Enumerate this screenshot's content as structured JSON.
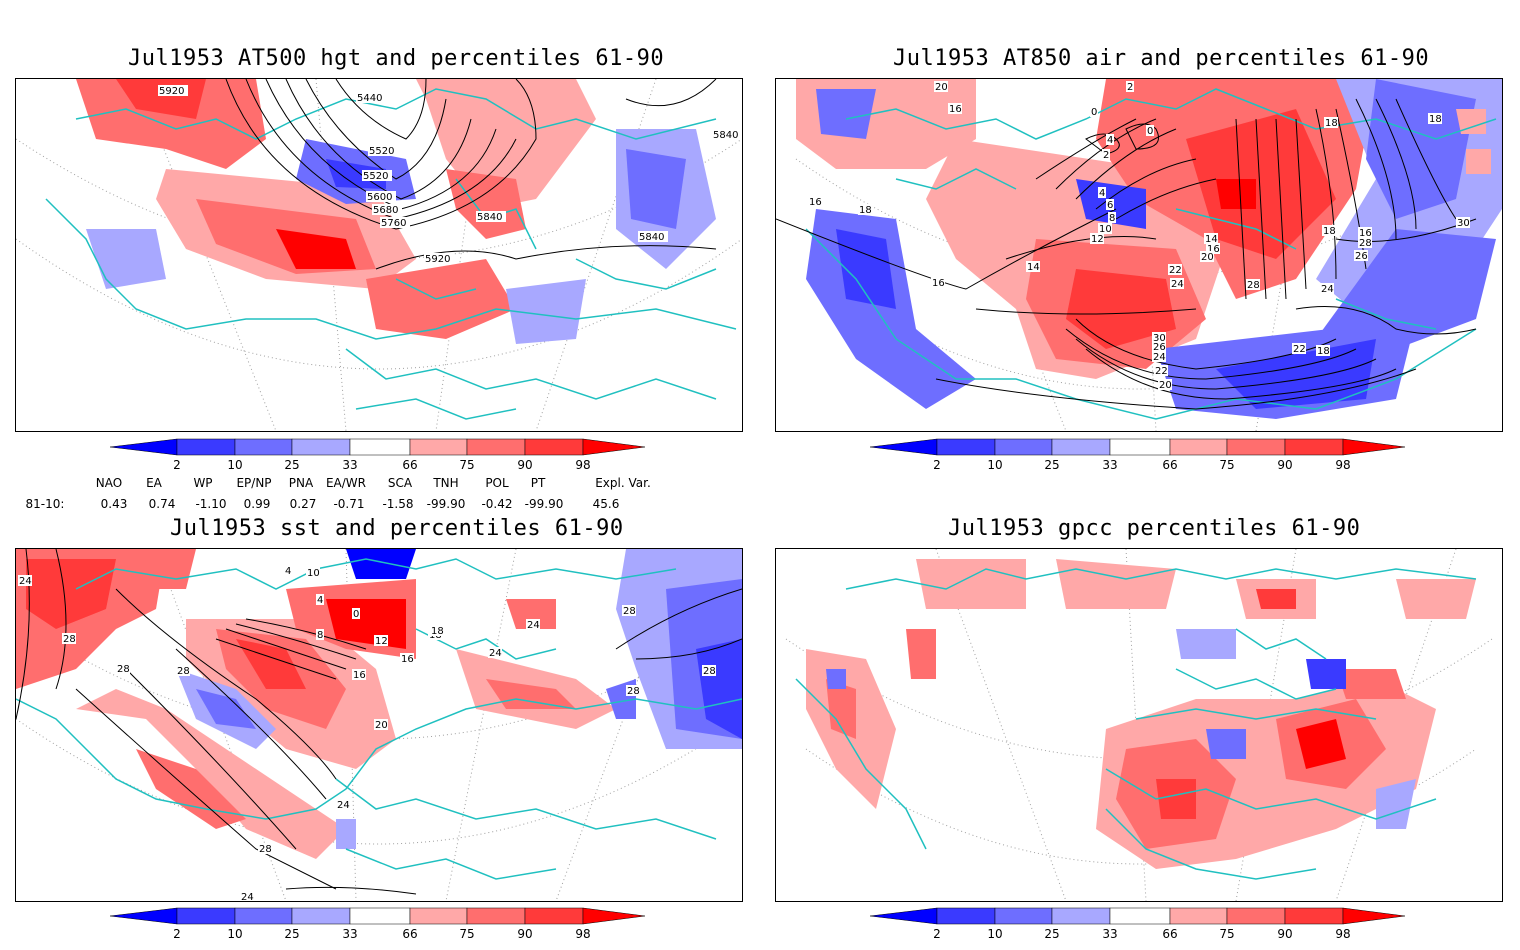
{
  "panels": [
    {
      "id": "hgt500",
      "title": "Jul1953 AT500 hgt and percentiles 61-90",
      "contour_labels": [
        "5920",
        "5440",
        "5520",
        "5520",
        "5600",
        "5680",
        "5760",
        "5840",
        "5840",
        "5920",
        "5840"
      ]
    },
    {
      "id": "air850",
      "title": "Jul1953 AT850 air and percentiles 61-90",
      "contour_labels": [
        "20",
        "16",
        "16",
        "18",
        "0",
        "2",
        "4",
        "0",
        "2",
        "4",
        "6",
        "8",
        "10",
        "12",
        "14",
        "16",
        "14",
        "16",
        "20",
        "22",
        "24",
        "28",
        "30",
        "26",
        "24",
        "22",
        "20",
        "18",
        "16",
        "28",
        "26",
        "24",
        "22",
        "18",
        "18",
        "18",
        "30",
        "16",
        "16"
      ]
    },
    {
      "id": "sst",
      "title": "Jul1953 sst and percentiles 61-90",
      "contour_labels": [
        "24",
        "28",
        "28",
        "28",
        "4",
        "10",
        "4",
        "0",
        "8",
        "12",
        "16",
        "18",
        "16",
        "20",
        "24",
        "28",
        "24",
        "24",
        "28",
        "28",
        "18",
        "24",
        "28"
      ]
    },
    {
      "id": "gpcc",
      "title": "Jul1953 gpcc percentiles 61-90",
      "contour_labels": []
    }
  ],
  "colorbar": {
    "labels": [
      "2",
      "10",
      "25",
      "33",
      "66",
      "75",
      "90",
      "98"
    ],
    "colors": {
      "blue_dark": "#0000ff",
      "blue_mid": "#3a3aff",
      "blue_light": "#6e6eff",
      "blue_pale": "#a8a8ff",
      "red_pale": "#ffa8a8",
      "red_light": "#ff6e6e",
      "red_mid": "#ff3a3a",
      "red_dark": "#ff0000"
    }
  },
  "indices": {
    "headers": [
      "NAO",
      "EA",
      "WP",
      "EP/NP",
      "PNA",
      "EA/WR",
      "SCA",
      "TNH",
      "POL",
      "PT",
      "Expl. Var."
    ],
    "row_label": "81-10:",
    "values": [
      "0.43",
      "0.74",
      "-1.10",
      "0.99",
      "0.27",
      "-0.71",
      "-1.58",
      "-99.90",
      "-0.42",
      "-99.90",
      "45.6"
    ]
  },
  "colors": {
    "coast": "#20c0c0",
    "contour": "#000000",
    "grid": "#a0a0a0"
  }
}
